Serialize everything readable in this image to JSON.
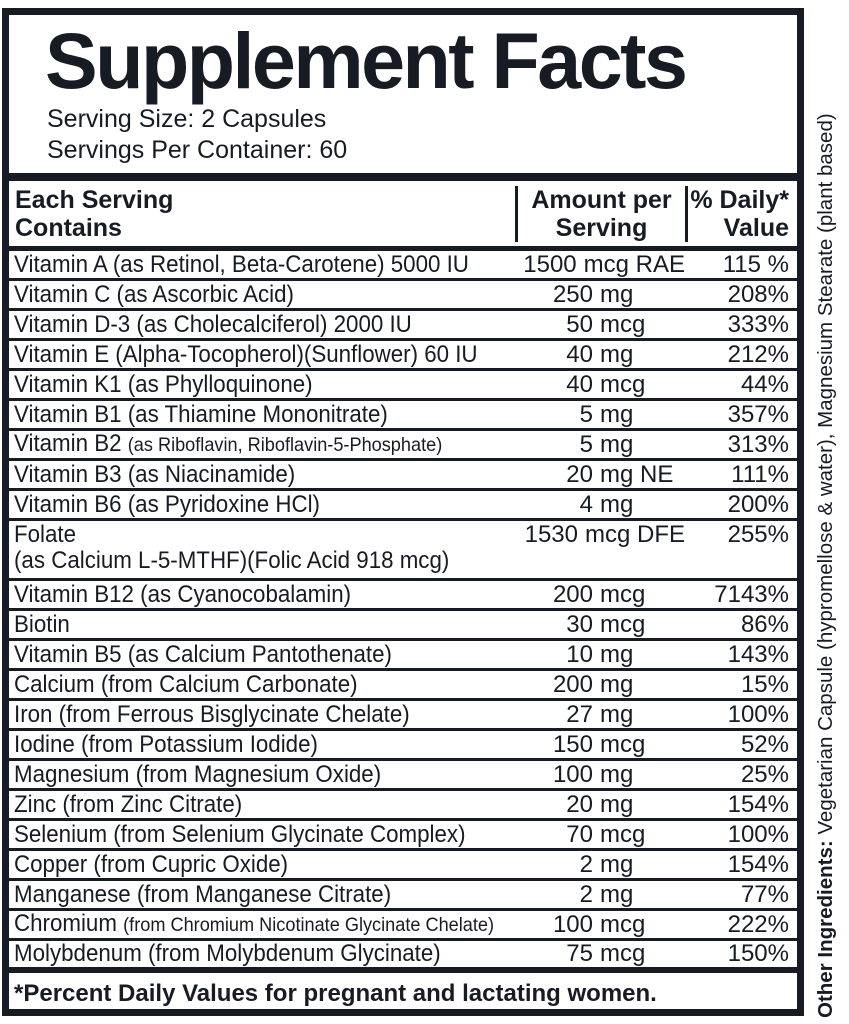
{
  "title": "Supplement Facts",
  "serving": {
    "size": "Serving Size: 2 Capsules",
    "per_container": "Servings Per Container: 60"
  },
  "table": {
    "header": {
      "col1_line1": "Each Serving",
      "col1_line2": "Contains",
      "col2_line1": "Amount per",
      "col2_line2": "Serving",
      "col3_line1": "% Daily*",
      "col3_line2": "Value"
    },
    "rows": [
      {
        "label": "Vitamin A (as Retinol, Beta-Carotene) 5000 IU",
        "amount": "1500 mcg RAE",
        "daily": "115 %"
      },
      {
        "label": "Vitamin C (as Ascorbic Acid)",
        "amount": "250 mg",
        "daily": "208%"
      },
      {
        "label": "Vitamin D-3 (as Cholecalciferol) 2000 IU",
        "amount": "50 mcg",
        "daily": "333%"
      },
      {
        "label": "Vitamin E (Alpha-Tocopherol)(Sunflower) 60 IU",
        "amount": "40 mg",
        "daily": "212%"
      },
      {
        "label": "Vitamin K1 (as Phylloquinone)",
        "amount": "40 mcg",
        "daily": "44%"
      },
      {
        "label": "Vitamin B1 (as Thiamine Mononitrate)",
        "amount": "5 mg",
        "daily": "357%"
      },
      {
        "label": "Vitamin B2 ",
        "label_small": "(as Riboflavin, Riboflavin-5-Phosphate)",
        "amount": "5 mg",
        "daily": "313%"
      },
      {
        "label": "Vitamin B3 (as Niacinamide)",
        "amount": "20 mg NE",
        "daily": "111%"
      },
      {
        "label": "Vitamin B6 (as Pyridoxine HCl)",
        "amount": "4 mg",
        "daily": "200%"
      },
      {
        "label": "Folate",
        "label_line2": "(as Calcium L-5-MTHF)(Folic Acid 918 mcg)",
        "amount": "1530 mcg DFE",
        "daily": "255%"
      },
      {
        "label": "Vitamin B12 (as Cyanocobalamin)",
        "amount": "200 mcg",
        "daily": "7143%"
      },
      {
        "label": "Biotin",
        "amount": "30 mcg",
        "daily": "86%"
      },
      {
        "label": "Vitamin B5 (as Calcium Pantothenate)",
        "amount": "10 mg",
        "daily": "143%"
      },
      {
        "label": "Calcium (from Calcium Carbonate)",
        "amount": "200 mg",
        "daily": "15%"
      },
      {
        "label": "Iron (from Ferrous Bisglycinate Chelate)",
        "amount": "27 mg",
        "daily": "100%"
      },
      {
        "label": "Iodine (from Potassium Iodide)",
        "amount": "150 mcg",
        "daily": "52%"
      },
      {
        "label": "Magnesium (from Magnesium Oxide)",
        "amount": "100 mg",
        "daily": "25%"
      },
      {
        "label": "Zinc (from Zinc Citrate)",
        "amount": "20 mg",
        "daily": "154%"
      },
      {
        "label": "Selenium (from Selenium Glycinate Complex)",
        "amount": "70 mcg",
        "daily": "100%"
      },
      {
        "label": "Copper (from Cupric Oxide)",
        "amount": "2 mg",
        "daily": "154%"
      },
      {
        "label": "Manganese (from Manganese Citrate)",
        "amount": "2 mg",
        "daily": "77%"
      },
      {
        "label": "Chromium ",
        "label_small": "(from Chromium Nicotinate Glycinate Chelate)",
        "amount": "100 mcg",
        "daily": "222%"
      },
      {
        "label": "Molybdenum (from Molybdenum Glycinate)",
        "amount": "75 mcg",
        "daily": "150%"
      }
    ]
  },
  "footnote": "*Percent Daily Values for pregnant and lactating women.",
  "side_note": {
    "bold": "Other Ingredients:",
    "text": " Vegetarian Capsule (hypromellose & water), Magnesium Stearate (plant based)"
  },
  "colors": {
    "ink": "#171b24",
    "background": "#ffffff"
  }
}
